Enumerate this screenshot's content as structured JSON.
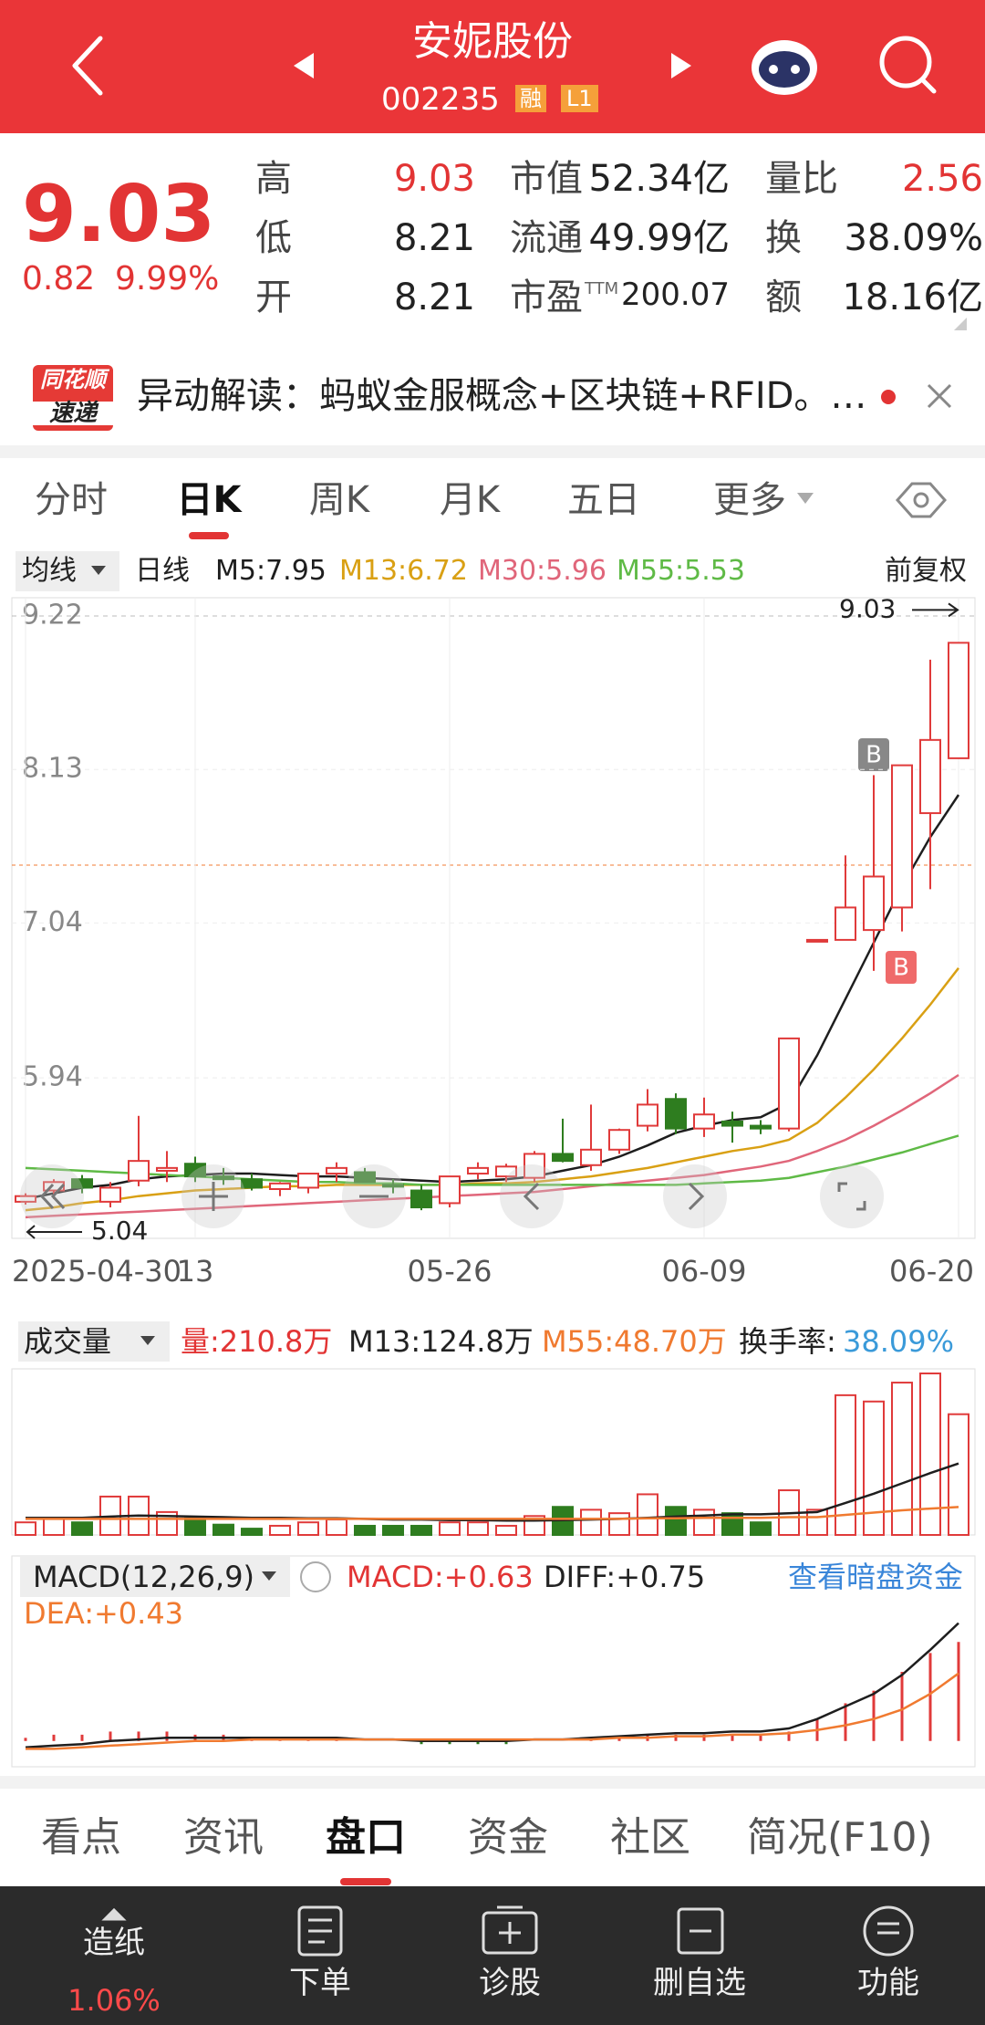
{
  "header": {
    "title": "安妮股份",
    "code": "002235",
    "badges": [
      "融",
      "L1"
    ]
  },
  "quote": {
    "price": "9.03",
    "change": "0.82",
    "change_pct": "9.99%",
    "fields": [
      [
        {
          "label": "高",
          "value": "9.03"
        },
        {
          "label": "市值",
          "value": "52.34亿"
        },
        {
          "label": "量比",
          "value": "2.56"
        }
      ],
      [
        {
          "label": "低",
          "value": "8.21"
        },
        {
          "label": "流通",
          "value": "49.99亿"
        },
        {
          "label": "换",
          "value": "38.09%"
        }
      ],
      [
        {
          "label": "开",
          "value": "8.21"
        },
        {
          "label": "市盈",
          "sup": "TTM",
          "value": "200.07"
        },
        {
          "label": "额",
          "value": "18.16亿"
        }
      ]
    ]
  },
  "news": {
    "badge": [
      "同花顺",
      "速递"
    ],
    "text": "异动解读：蚂蚁金服概念+区块链+RFID。…"
  },
  "tabs": {
    "items": [
      "分时",
      "日K",
      "周K",
      "月K",
      "五日",
      "更多"
    ],
    "active": 1
  },
  "legend": {
    "selector": "均线",
    "period": "日线",
    "adjust": "前复权"
  },
  "signals": [
    "B",
    "B"
  ],
  "chart_data": [
    {
      "type": "candlestick",
      "categories": [
        "2025-04-30",
        null,
        null,
        null,
        null,
        null,
        "13",
        null,
        null,
        null,
        null,
        null,
        null,
        null,
        null,
        "05-26",
        null,
        null,
        null,
        null,
        null,
        null,
        null,
        null,
        "06-09",
        null,
        null,
        null,
        null,
        null,
        null,
        null,
        null,
        "06-20"
      ],
      "open": [
        5.06,
        5.14,
        5.22,
        5.06,
        5.21,
        5.28,
        5.33,
        5.24,
        5.22,
        5.15,
        5.16,
        5.26,
        5.27,
        5.18,
        5.14,
        5.05,
        5.26,
        5.24,
        5.23,
        5.4,
        5.32,
        5.43,
        5.6,
        5.79,
        5.58,
        5.63,
        5.6,
        5.58,
        6.92,
        6.92,
        6.99,
        7.15,
        7.82,
        8.21
      ],
      "high": [
        5.12,
        5.22,
        5.25,
        5.2,
        5.67,
        5.42,
        5.38,
        5.3,
        5.26,
        5.2,
        5.26,
        5.34,
        5.3,
        5.22,
        5.18,
        5.24,
        5.34,
        5.33,
        5.42,
        5.65,
        5.75,
        5.58,
        5.86,
        5.83,
        5.8,
        5.7,
        5.64,
        6.22,
        6.92,
        7.52,
        8.09,
        8.16,
        8.91,
        9.03
      ],
      "low": [
        5.04,
        5.08,
        5.12,
        5.02,
        5.17,
        5.2,
        5.2,
        5.18,
        5.14,
        5.1,
        5.12,
        5.2,
        5.2,
        5.12,
        5.0,
        5.02,
        5.22,
        5.2,
        5.2,
        5.34,
        5.28,
        5.4,
        5.56,
        5.54,
        5.52,
        5.48,
        5.54,
        5.56,
        6.92,
        6.92,
        6.7,
        6.98,
        7.28,
        8.21
      ],
      "close": [
        5.1,
        5.2,
        5.16,
        5.16,
        5.35,
        5.3,
        5.24,
        5.22,
        5.16,
        5.19,
        5.26,
        5.3,
        5.2,
        5.17,
        5.02,
        5.24,
        5.3,
        5.31,
        5.4,
        5.35,
        5.43,
        5.57,
        5.75,
        5.58,
        5.68,
        5.6,
        5.58,
        6.22,
        6.92,
        7.15,
        7.37,
        8.16,
        8.34,
        9.03
      ],
      "up_color": "#e03a3a",
      "down_color": "#2e7d1f",
      "series": [
        {
          "name": "M5:7.95",
          "color": "#1e1e1e",
          "values": [
            5.08,
            5.12,
            5.16,
            5.18,
            5.22,
            5.24,
            5.25,
            5.26,
            5.26,
            5.25,
            5.24,
            5.24,
            5.23,
            5.22,
            5.21,
            5.2,
            5.21,
            5.22,
            5.24,
            5.28,
            5.32,
            5.38,
            5.46,
            5.55,
            5.6,
            5.64,
            5.66,
            5.76,
            6.1,
            6.5,
            6.9,
            7.3,
            7.65,
            7.95
          ]
        },
        {
          "name": "M13:6.72",
          "color": "#d9a014",
          "values": [
            5.0,
            5.02,
            5.05,
            5.07,
            5.1,
            5.12,
            5.14,
            5.15,
            5.16,
            5.17,
            5.17,
            5.18,
            5.18,
            5.18,
            5.18,
            5.18,
            5.19,
            5.19,
            5.2,
            5.22,
            5.24,
            5.27,
            5.3,
            5.34,
            5.38,
            5.42,
            5.45,
            5.5,
            5.62,
            5.8,
            6.0,
            6.22,
            6.46,
            6.72
          ]
        },
        {
          "name": "M30:5.96",
          "color": "#e0667a",
          "values": [
            4.95,
            4.96,
            4.97,
            4.98,
            4.99,
            5.0,
            5.01,
            5.02,
            5.03,
            5.04,
            5.05,
            5.06,
            5.07,
            5.08,
            5.09,
            5.1,
            5.11,
            5.12,
            5.13,
            5.15,
            5.17,
            5.19,
            5.21,
            5.23,
            5.25,
            5.28,
            5.31,
            5.35,
            5.42,
            5.5,
            5.6,
            5.71,
            5.83,
            5.96
          ]
        },
        {
          "name": "M55:5.53",
          "color": "#5fba46",
          "values": [
            5.3,
            5.29,
            5.28,
            5.27,
            5.26,
            5.25,
            5.24,
            5.23,
            5.22,
            5.21,
            5.2,
            5.2,
            5.19,
            5.19,
            5.18,
            5.18,
            5.18,
            5.18,
            5.18,
            5.18,
            5.18,
            5.18,
            5.18,
            5.18,
            5.19,
            5.2,
            5.21,
            5.23,
            5.27,
            5.31,
            5.36,
            5.41,
            5.47,
            5.53
          ]
        }
      ],
      "ylim": [
        4.8,
        9.35
      ],
      "yticks": [
        9.22,
        8.13,
        7.04,
        5.94
      ],
      "max_label": "9.03",
      "min_label": "5.04"
    },
    {
      "type": "volume",
      "title": "成交量",
      "bar_name": "量:210.8万",
      "values": [
        22,
        29,
        22,
        67,
        67,
        40,
        29,
        18,
        11,
        16,
        22,
        27,
        16,
        16,
        16,
        22,
        22,
        16,
        33,
        49,
        44,
        38,
        71,
        49,
        44,
        38,
        22,
        78,
        44,
        244,
        233,
        266,
        282,
        210.8
      ],
      "series": [
        {
          "name": "M13:124.8万",
          "color": "#1e1e1e",
          "values": [
            30,
            30,
            30,
            32,
            34,
            33,
            32,
            31,
            30,
            30,
            29,
            29,
            28,
            27,
            27,
            26,
            26,
            25,
            25,
            26,
            27,
            28,
            30,
            32,
            34,
            36,
            36,
            38,
            40,
            56,
            72,
            90,
            108,
            124.8
          ]
        },
        {
          "name": "M55:48.70万",
          "color": "#f07a30",
          "values": [
            28,
            28,
            28,
            28,
            28,
            28,
            28,
            28,
            28,
            28,
            28,
            28,
            28,
            28,
            28,
            28,
            28,
            28,
            28,
            28,
            28,
            28,
            29,
            29,
            30,
            30,
            30,
            31,
            31,
            35,
            39,
            43,
            46,
            48.7
          ]
        }
      ],
      "turnover_label": "换手率:",
      "turnover": "38.09%",
      "ylim": [
        0,
        290
      ]
    },
    {
      "type": "macd",
      "title": "MACD(12,26,9)",
      "link": "查看暗盘资金",
      "hist_name": "MACD:+0.63",
      "hist": [
        0.02,
        0.04,
        0.04,
        0.06,
        0.06,
        0.06,
        0.04,
        0.04,
        0.02,
        0.02,
        0.02,
        0.02,
        0,
        0,
        -0.02,
        -0.02,
        -0.02,
        -0.02,
        0,
        0,
        0.02,
        0.02,
        0.04,
        0.04,
        0.04,
        0.04,
        0.04,
        0.06,
        0.14,
        0.24,
        0.32,
        0.44,
        0.56,
        0.63
      ],
      "series": [
        {
          "name": "DIFF:+0.75",
          "color": "#1e1e1e",
          "values": [
            -0.04,
            -0.03,
            -0.02,
            0,
            0.01,
            0.02,
            0.02,
            0.02,
            0.02,
            0.02,
            0.02,
            0.02,
            0.01,
            0.01,
            0,
            0,
            0,
            0,
            0.01,
            0.01,
            0.02,
            0.03,
            0.04,
            0.05,
            0.05,
            0.06,
            0.06,
            0.08,
            0.14,
            0.22,
            0.3,
            0.42,
            0.58,
            0.75
          ]
        },
        {
          "name": "DEA:+0.43",
          "color": "#f07a30",
          "values": [
            -0.05,
            -0.05,
            -0.04,
            -0.03,
            -0.02,
            -0.01,
            0,
            0,
            0.01,
            0.01,
            0.01,
            0.01,
            0.01,
            0.01,
            0.01,
            0.01,
            0.01,
            0.01,
            0.01,
            0.01,
            0.01,
            0.02,
            0.02,
            0.03,
            0.03,
            0.04,
            0.04,
            0.05,
            0.07,
            0.1,
            0.14,
            0.2,
            0.3,
            0.43
          ]
        }
      ],
      "ylim": [
        -0.1,
        0.8
      ]
    }
  ],
  "bottom_tabs": {
    "items": [
      "看点",
      "资讯",
      "盘口",
      "资金",
      "社区",
      "简况(F10)"
    ],
    "active": 2
  },
  "nav": [
    {
      "label": "造纸",
      "sub": "1.06%"
    },
    {
      "label": "下单"
    },
    {
      "label": "诊股"
    },
    {
      "label": "删自选"
    },
    {
      "label": "功能"
    }
  ]
}
